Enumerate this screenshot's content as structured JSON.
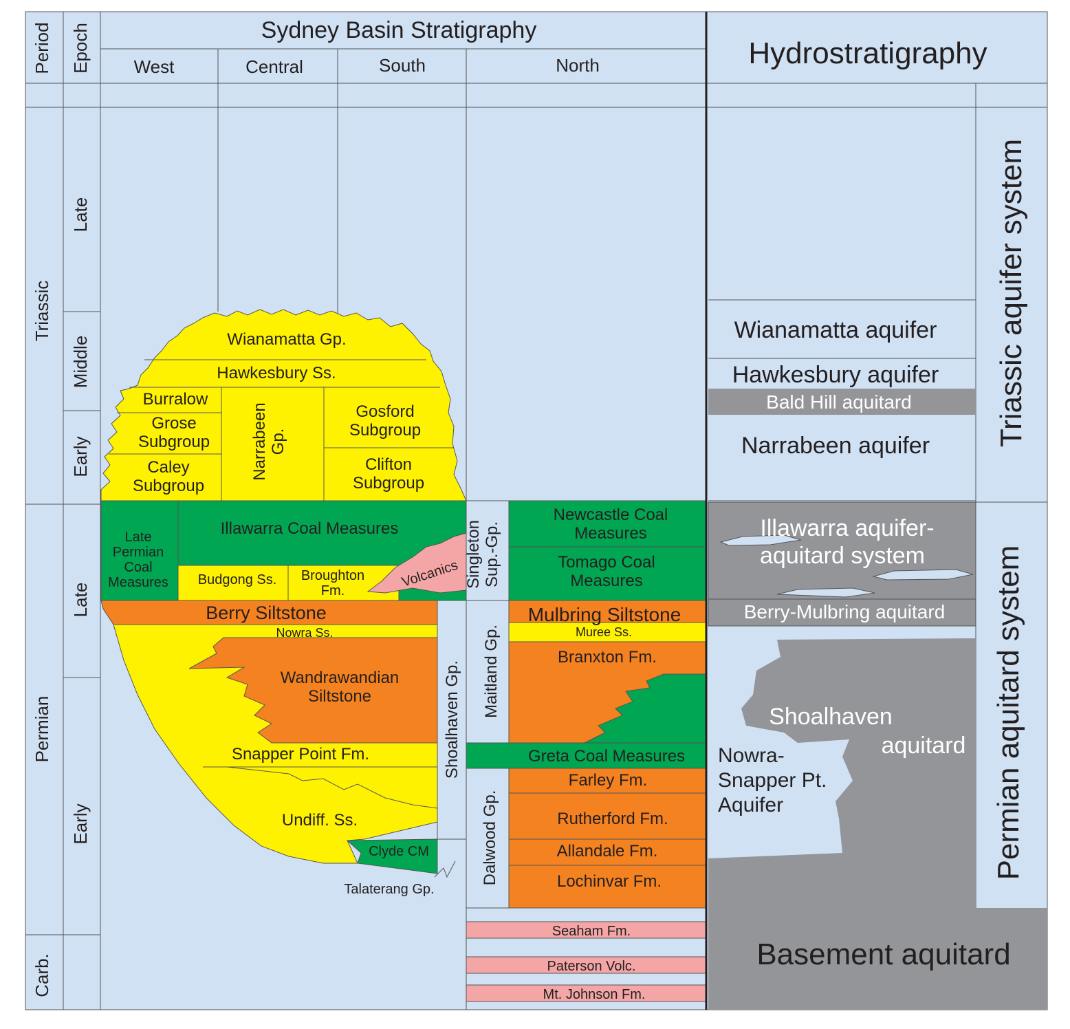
{
  "header": {
    "period_label": "Period",
    "epoch_label": "Epoch",
    "title": "Sydney Basin Stratigraphy",
    "regions": [
      "West",
      "Central",
      "South",
      "North"
    ],
    "hydro_title": "Hydrostratigraphy"
  },
  "periods": [
    "Triassic",
    "Permian",
    "Carb."
  ],
  "epochs": [
    "Late",
    "Middle",
    "Early",
    "Late",
    "Early"
  ],
  "units": [
    [
      "Wianamatta Gp."
    ],
    [
      "Hawkesbury Ss."
    ],
    [
      "Burralow"
    ],
    [
      "Grose",
      "Subgroup"
    ],
    [
      "Caley",
      "Subgroup"
    ],
    [
      "Narrabeen",
      "Gp."
    ],
    [
      "Gosford",
      "Subgroup"
    ],
    [
      "Clifton",
      "Subgroup"
    ],
    [
      "Late",
      "Permian",
      "Coal",
      "Measures"
    ],
    [
      "Illawarra Coal Measures"
    ],
    [
      "Budgong Ss."
    ],
    [
      "Broughton",
      "Fm."
    ],
    [
      "Volcanics"
    ],
    [
      "Berry Siltstone"
    ],
    [
      "Nowra Ss."
    ],
    [
      "Wandrawandian",
      "Siltstone"
    ],
    [
      "Snapper Point Fm."
    ],
    [
      "Undiff. Ss."
    ],
    [
      "Clyde CM"
    ],
    [
      "Shoalhaven Gp."
    ],
    [
      "Talaterang Gp."
    ],
    [
      "Singleton",
      "Sup.-Gp."
    ],
    [
      "Newcastle Coal",
      "Measures"
    ],
    [
      "Tomago Coal",
      "Measures"
    ],
    [
      "Mulbring Siltstone"
    ],
    [
      "Muree Ss."
    ],
    [
      "Branxton Fm."
    ],
    [
      "Maitland Gp."
    ],
    [
      "Greta Coal Measures"
    ],
    [
      "Farley Fm."
    ],
    [
      "Rutherford Fm."
    ],
    [
      "Allandale Fm."
    ],
    [
      "Lochinvar Fm."
    ],
    [
      "Dalwood Gp."
    ],
    [
      "Seaham Fm."
    ],
    [
      "Paterson Volc."
    ],
    [
      "Mt. Johnson Fm."
    ]
  ],
  "hydro": [
    [
      "Wianamatta aquifer"
    ],
    [
      "Hawkesbury aquifer"
    ],
    [
      "Bald Hill aquitard"
    ],
    [
      "Narrabeen aquifer"
    ],
    [
      "Illawarra aquifer-",
      "aquitard system"
    ],
    [
      "Berry-Mulbring aquitard"
    ],
    [
      "Shoalhaven",
      "aquitard"
    ],
    [
      "Nowra-",
      "Snapper Pt.",
      "Aquifer"
    ],
    [
      "Basement aquitard"
    ],
    [
      "Triassic aquifer system"
    ],
    [
      "Permian aquitard system"
    ]
  ]
}
